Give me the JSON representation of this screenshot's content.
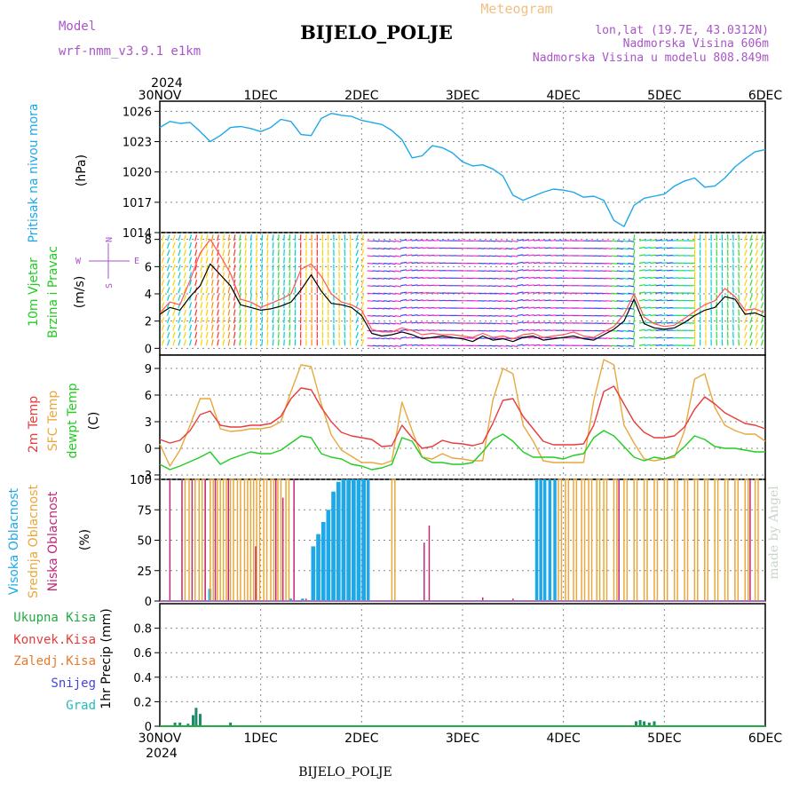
{
  "header": {
    "model_label": "Model",
    "model_name": "wrf-nmm_v3.9.1  e1km",
    "title": "BIJELO_POLJE",
    "meteogram_label": "Meteogram",
    "lonlat": "lon,lat (19.7E, 43.0312N)",
    "elevation": "Nadmorska Visina 606m",
    "model_elevation": "Nadmorska Visina u modelu 808.849m",
    "footer_station": "BIJELO_POLJE",
    "watermark": "made by Angel"
  },
  "time_axis": {
    "year": "2024",
    "labels": [
      "30NOV",
      "1DEC",
      "2DEC",
      "3DEC",
      "4DEC",
      "5DEC",
      "6DEC"
    ]
  },
  "colors": {
    "pressure": "#1ea8e8",
    "temp2m": "#e83c3c",
    "sfc_temp": "#e8a83c",
    "dewpoint": "#22cc22",
    "high_cloud": "#1ea8e8",
    "mid_cloud": "#e8a83c",
    "low_cloud": "#c0287a",
    "precip_total": "#22aa44",
    "precip_conv": "#e83c3c",
    "precip_frozen": "#e87a2c",
    "snow": "#4444dd",
    "hail": "#22bbbb"
  },
  "chart_data": [
    {
      "type": "line",
      "name": "pressure",
      "ylabel": "(hPa)",
      "panel_label": "Pritisak na nivou mora",
      "ylim": [
        1014,
        1027
      ],
      "yticks": [
        "1014",
        "1017",
        "1020",
        "1023",
        "1026"
      ],
      "x_days": [
        0,
        0.1,
        0.2,
        0.3,
        0.4,
        0.5,
        0.6,
        0.7,
        0.8,
        0.9,
        1.0,
        1.1,
        1.2,
        1.3,
        1.4,
        1.5,
        1.6,
        1.7,
        1.8,
        1.9,
        2.0,
        2.1,
        2.2,
        2.3,
        2.4,
        2.5,
        2.6,
        2.7,
        2.8,
        2.9,
        3.0,
        3.1,
        3.2,
        3.3,
        3.4,
        3.5,
        3.6,
        3.7,
        3.8,
        3.9,
        4.0,
        4.1,
        4.2,
        4.3,
        4.4,
        4.5,
        4.6,
        4.7,
        4.8,
        4.9,
        5.0,
        5.1,
        5.2,
        5.3,
        5.4,
        5.5,
        5.6,
        5.7,
        5.8,
        5.9,
        6.0
      ],
      "values": [
        1024.4,
        1025.0,
        1024.8,
        1024.9,
        1024.0,
        1023.0,
        1023.6,
        1024.4,
        1024.5,
        1024.3,
        1024.0,
        1024.4,
        1025.2,
        1025.0,
        1023.7,
        1023.6,
        1025.3,
        1025.8,
        1025.6,
        1025.5,
        1025.1,
        1024.9,
        1024.7,
        1024.1,
        1023.2,
        1021.4,
        1021.6,
        1022.6,
        1022.4,
        1021.9,
        1021.0,
        1020.6,
        1020.7,
        1020.3,
        1019.6,
        1017.7,
        1017.2,
        1017.6,
        1018.0,
        1018.3,
        1018.2,
        1018.0,
        1017.5,
        1017.6,
        1017.2,
        1015.2,
        1014.6,
        1016.7,
        1017.4,
        1017.6,
        1017.8,
        1018.6,
        1019.1,
        1019.4,
        1018.5,
        1018.6,
        1019.4,
        1020.5,
        1021.3,
        1022.0,
        1022.2
      ]
    },
    {
      "type": "line",
      "name": "wind",
      "ylabel": "(m/s)",
      "panel_label_1": "10m Vjetar",
      "panel_label_2": "Brzina i Pravac",
      "compass_n": "N",
      "compass_e": "E",
      "compass_w": "W",
      "compass_s": "S",
      "ylim": [
        -0.5,
        8.5
      ],
      "yticks": [
        "0",
        "2",
        "4",
        "6",
        "8"
      ],
      "x_days": [
        0,
        0.1,
        0.2,
        0.3,
        0.4,
        0.5,
        0.6,
        0.7,
        0.8,
        0.9,
        1.0,
        1.1,
        1.2,
        1.3,
        1.4,
        1.5,
        1.6,
        1.7,
        1.8,
        1.9,
        2.0,
        2.1,
        2.2,
        2.3,
        2.4,
        2.5,
        2.6,
        2.7,
        2.8,
        2.9,
        3.0,
        3.1,
        3.2,
        3.3,
        3.4,
        3.5,
        3.6,
        3.7,
        3.8,
        3.9,
        4.0,
        4.1,
        4.2,
        4.3,
        4.4,
        4.5,
        4.6,
        4.7,
        4.8,
        4.9,
        5.0,
        5.1,
        5.2,
        5.3,
        5.4,
        5.5,
        5.6,
        5.7,
        5.8,
        5.9,
        6.0
      ],
      "speed": [
        2.5,
        3.0,
        2.8,
        3.8,
        4.6,
        6.2,
        5.4,
        4.6,
        3.2,
        3.0,
        2.8,
        2.9,
        3.1,
        3.4,
        4.3,
        5.4,
        4.2,
        3.3,
        3.2,
        3.0,
        2.4,
        1.1,
        0.9,
        1.0,
        1.2,
        1.0,
        0.7,
        0.8,
        0.9,
        0.8,
        0.7,
        0.5,
        0.9,
        0.6,
        0.7,
        0.5,
        0.8,
        0.9,
        0.6,
        0.7,
        0.8,
        0.9,
        0.7,
        0.6,
        1.0,
        1.4,
        2.0,
        3.6,
        1.8,
        1.5,
        1.4,
        1.5,
        1.9,
        2.4,
        2.8,
        3.0,
        3.8,
        3.6,
        2.5,
        2.6,
        2.3
      ],
      "gust": [
        2.6,
        3.4,
        3.2,
        5.0,
        7.0,
        8.0,
        6.8,
        5.5,
        3.6,
        3.4,
        3.0,
        3.3,
        3.6,
        4.0,
        5.8,
        6.2,
        5.3,
        4.0,
        3.4,
        3.2,
        2.8,
        1.4,
        1.2,
        1.2,
        1.5,
        1.3,
        1.0,
        1.1,
        1.0,
        1.0,
        0.9,
        0.8,
        1.1,
        0.8,
        0.9,
        0.7,
        1.0,
        1.1,
        0.8,
        0.9,
        1.0,
        1.2,
        0.9,
        0.8,
        1.2,
        1.6,
        2.5,
        4.0,
        2.3,
        1.8,
        1.6,
        1.7,
        2.2,
        2.7,
        3.2,
        3.5,
        4.4,
        3.8,
        2.8,
        2.9,
        2.6
      ]
    },
    {
      "type": "line",
      "name": "temperature",
      "ylabel": "(C)",
      "panel_label_1": "2m Temp",
      "panel_label_2": "SFC Temp",
      "panel_label_3": "dewpt Temp",
      "ylim": [
        -3.5,
        10.5
      ],
      "yticks": [
        "-3",
        "0",
        "3",
        "6",
        "9"
      ],
      "x_days": [
        0,
        0.1,
        0.2,
        0.3,
        0.4,
        0.5,
        0.6,
        0.7,
        0.8,
        0.9,
        1.0,
        1.1,
        1.2,
        1.3,
        1.4,
        1.5,
        1.6,
        1.7,
        1.8,
        1.9,
        2.0,
        2.1,
        2.2,
        2.3,
        2.4,
        2.5,
        2.6,
        2.7,
        2.8,
        2.9,
        3.0,
        3.1,
        3.2,
        3.3,
        3.4,
        3.5,
        3.6,
        3.7,
        3.8,
        3.9,
        4.0,
        4.1,
        4.2,
        4.3,
        4.4,
        4.5,
        4.6,
        4.7,
        4.8,
        4.9,
        5.0,
        5.1,
        5.2,
        5.3,
        5.4,
        5.5,
        5.6,
        5.7,
        5.8,
        5.9,
        6.0
      ],
      "t2m": [
        1.0,
        0.6,
        0.9,
        2.0,
        3.8,
        4.2,
        2.6,
        2.4,
        2.4,
        2.6,
        2.6,
        2.8,
        3.6,
        5.6,
        6.8,
        6.6,
        4.6,
        3.0,
        1.8,
        1.4,
        1.2,
        1.0,
        0.2,
        0.3,
        2.6,
        1.2,
        0.0,
        0.2,
        0.9,
        0.6,
        0.5,
        0.3,
        0.6,
        2.8,
        5.4,
        5.6,
        3.6,
        2.2,
        0.8,
        0.4,
        0.4,
        0.4,
        0.5,
        2.6,
        6.4,
        7.0,
        5.0,
        3.0,
        1.8,
        1.2,
        1.2,
        1.4,
        2.4,
        4.4,
        5.8,
        5.0,
        4.0,
        3.4,
        2.8,
        2.6,
        2.2
      ],
      "sfc": [
        0.5,
        -2.0,
        -0.2,
        2.6,
        5.6,
        5.6,
        2.2,
        1.9,
        2.0,
        2.2,
        2.2,
        2.4,
        3.0,
        6.4,
        9.4,
        9.2,
        5.0,
        1.5,
        -0.2,
        -0.9,
        -1.6,
        -1.6,
        -1.8,
        -1.4,
        5.2,
        2.0,
        -1.0,
        -1.2,
        -0.6,
        -1.1,
        -1.2,
        -1.4,
        -1.4,
        5.4,
        9.0,
        8.4,
        2.6,
        0.8,
        -1.4,
        -1.6,
        -1.6,
        -1.6,
        -1.6,
        5.4,
        10.0,
        9.4,
        2.6,
        0.6,
        -1.2,
        -1.4,
        -1.2,
        -1.0,
        2.0,
        7.8,
        8.4,
        4.6,
        2.6,
        2.0,
        1.6,
        1.6,
        0.8
      ],
      "dewpt": [
        -1.8,
        -2.4,
        -2.0,
        -1.5,
        -1.0,
        -0.4,
        -1.8,
        -1.2,
        -0.8,
        -0.4,
        -0.6,
        -0.6,
        -0.2,
        0.6,
        1.4,
        1.2,
        -0.6,
        -1.0,
        -1.2,
        -1.8,
        -2.0,
        -2.4,
        -2.2,
        -1.8,
        1.2,
        0.8,
        -1.0,
        -1.6,
        -1.6,
        -1.8,
        -1.8,
        -1.6,
        -0.4,
        1.0,
        1.6,
        0.8,
        -0.4,
        -1.0,
        -1.0,
        -1.0,
        -1.2,
        -0.8,
        -0.6,
        1.2,
        2.0,
        1.4,
        0.2,
        -1.0,
        -1.4,
        -1.0,
        -1.2,
        -0.8,
        0.2,
        1.4,
        1.0,
        0.2,
        0.0,
        0.0,
        -0.2,
        -0.4,
        -0.4
      ]
    },
    {
      "type": "bar",
      "name": "cloud_cover",
      "ylabel": "(%)",
      "panel_label_1": "Visoka Oblacnost",
      "panel_label_2": "Srednja Oblacnost",
      "panel_label_3": "Niska Oblacnost",
      "ylim": [
        0,
        100
      ],
      "yticks": [
        "0",
        "25",
        "50",
        "75",
        "100"
      ],
      "high": [
        [
          0.48,
          0.52,
          10
        ],
        [
          1.28,
          1.32,
          2
        ],
        [
          1.4,
          1.44,
          2
        ],
        [
          1.5,
          1.55,
          45
        ],
        [
          1.55,
          1.6,
          55
        ],
        [
          1.6,
          1.65,
          65
        ],
        [
          1.65,
          1.7,
          75
        ],
        [
          1.7,
          1.75,
          90
        ],
        [
          1.75,
          1.8,
          98
        ],
        [
          1.8,
          1.85,
          100
        ],
        [
          1.85,
          1.9,
          100
        ],
        [
          1.9,
          1.95,
          100
        ],
        [
          1.95,
          2.0,
          100
        ],
        [
          2.0,
          2.05,
          100
        ],
        [
          2.05,
          2.09,
          100
        ],
        [
          3.72,
          3.76,
          100
        ],
        [
          3.76,
          3.8,
          100
        ],
        [
          3.8,
          3.84,
          100
        ],
        [
          3.85,
          3.89,
          100
        ],
        [
          3.9,
          3.94,
          100
        ]
      ],
      "mid": [
        [
          0.25,
          0.29,
          100
        ],
        [
          0.35,
          0.39,
          100
        ],
        [
          0.42,
          0.45,
          100
        ],
        [
          0.5,
          0.53,
          100
        ],
        [
          0.57,
          0.6,
          100
        ],
        [
          0.63,
          0.66,
          100
        ],
        [
          0.7,
          0.73,
          100
        ],
        [
          0.77,
          0.8,
          100
        ],
        [
          0.84,
          0.87,
          100
        ],
        [
          0.9,
          0.93,
          100
        ],
        [
          0.96,
          0.99,
          100
        ],
        [
          1.03,
          1.06,
          100
        ],
        [
          1.1,
          1.13,
          100
        ],
        [
          1.17,
          1.2,
          100
        ],
        [
          1.25,
          1.28,
          100
        ],
        [
          2.3,
          2.33,
          100
        ],
        [
          3.95,
          3.98,
          100
        ],
        [
          4.02,
          4.05,
          100
        ],
        [
          4.1,
          4.13,
          100
        ],
        [
          4.18,
          4.21,
          100
        ],
        [
          4.25,
          4.28,
          100
        ],
        [
          4.33,
          4.36,
          100
        ],
        [
          4.4,
          4.43,
          100
        ],
        [
          4.5,
          4.53,
          100
        ],
        [
          4.6,
          4.63,
          100
        ],
        [
          4.7,
          4.73,
          100
        ],
        [
          4.8,
          4.83,
          100
        ],
        [
          4.9,
          4.93,
          100
        ],
        [
          5.0,
          5.03,
          100
        ],
        [
          5.1,
          5.13,
          100
        ],
        [
          5.2,
          5.23,
          100
        ],
        [
          5.3,
          5.33,
          100
        ],
        [
          5.4,
          5.43,
          100
        ],
        [
          5.5,
          5.53,
          100
        ],
        [
          5.6,
          5.63,
          100
        ],
        [
          5.7,
          5.73,
          100
        ],
        [
          5.8,
          5.83,
          100
        ],
        [
          5.9,
          5.93,
          100
        ]
      ],
      "low": [
        [
          0.1,
          0.12,
          100
        ],
        [
          0.22,
          0.24,
          100
        ],
        [
          0.32,
          0.34,
          100
        ],
        [
          0.45,
          0.47,
          100
        ],
        [
          0.55,
          0.57,
          100
        ],
        [
          0.68,
          0.7,
          100
        ],
        [
          0.95,
          0.97,
          45
        ],
        [
          1.15,
          1.17,
          100
        ],
        [
          1.22,
          1.24,
          85
        ],
        [
          1.33,
          1.35,
          100
        ],
        [
          1.45,
          1.47,
          2
        ],
        [
          2.62,
          2.64,
          48
        ],
        [
          2.67,
          2.69,
          62
        ],
        [
          3.2,
          3.22,
          3
        ],
        [
          3.5,
          3.52,
          2
        ],
        [
          4.55,
          4.57,
          100
        ],
        [
          5.85,
          5.87,
          100
        ]
      ]
    },
    {
      "type": "bar",
      "name": "precipitation",
      "ylabel": "1hr Precip (mm)",
      "legend": [
        "Ukupna Kisa",
        "Konvek.Kisa",
        "Zaledj.Kisa",
        "Snijeg",
        "Grad"
      ],
      "ylim": [
        0,
        1.0
      ],
      "yticks": [
        "0",
        "0.2",
        "0.4",
        "0.6",
        "0.8"
      ],
      "total": [
        [
          0.15,
          0.03
        ],
        [
          0.2,
          0.03
        ],
        [
          0.28,
          0.02
        ],
        [
          0.33,
          0.09
        ],
        [
          0.36,
          0.15
        ],
        [
          0.4,
          0.1
        ],
        [
          0.7,
          0.03
        ],
        [
          4.72,
          0.04
        ],
        [
          4.76,
          0.05
        ],
        [
          4.8,
          0.04
        ],
        [
          4.85,
          0.03
        ],
        [
          4.9,
          0.04
        ]
      ]
    }
  ]
}
